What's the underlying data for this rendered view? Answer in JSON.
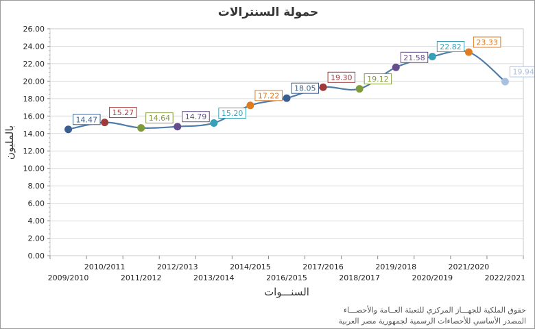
{
  "chart_data": {
    "type": "line",
    "title": "حمولة السنترالات",
    "xlabel": "السنـــوات",
    "ylabel": "بالمليون",
    "ylim": [
      0,
      26
    ],
    "yticks": [
      "0.00",
      "2.00",
      "4.00",
      "6.00",
      "8.00",
      "10.00",
      "12.00",
      "14.00",
      "16.00",
      "18.00",
      "20.00",
      "22.00",
      "24.00",
      "26.00"
    ],
    "grid": true,
    "categories": [
      "2009/2010",
      "2010/2011",
      "2011/2012",
      "2012/2013",
      "2013/2014",
      "2014/2015",
      "2016/2015",
      "2017/2016",
      "2018/2017",
      "2019/2018",
      "2020/2019",
      "2021/2020",
      "2022/2021"
    ],
    "series": [
      {
        "values": [
          14.47,
          15.27,
          14.64,
          14.79,
          15.2,
          17.22,
          18.05,
          19.3,
          19.12,
          21.58,
          22.82,
          23.33,
          19.94
        ]
      }
    ],
    "data_labels": [
      "14.47",
      "15.27",
      "14.64",
      "14.79",
      "15.20",
      "17.22",
      "18.05",
      "19.30",
      "19.12",
      "21.58",
      "22.82",
      "23.33",
      "19.94"
    ],
    "point_colors": [
      "#3a5f8f",
      "#9e3a3a",
      "#7f9a3a",
      "#664d8c",
      "#35a0b8",
      "#e07b1f",
      "#3a5f8f",
      "#9e3a3a",
      "#7f9a3a",
      "#664d8c",
      "#35a0b8",
      "#e07b1f",
      "#a9c0e0"
    ],
    "line_color": "#4f7ba7"
  },
  "footer": {
    "line1": "حقوق الملكية للجهـــاز المركزي للتعبئة العــامة والأحصـــاء",
    "line2": "المصدر الأساسي للأحصاءات الرسمية لجمهورية مصر العربية"
  }
}
